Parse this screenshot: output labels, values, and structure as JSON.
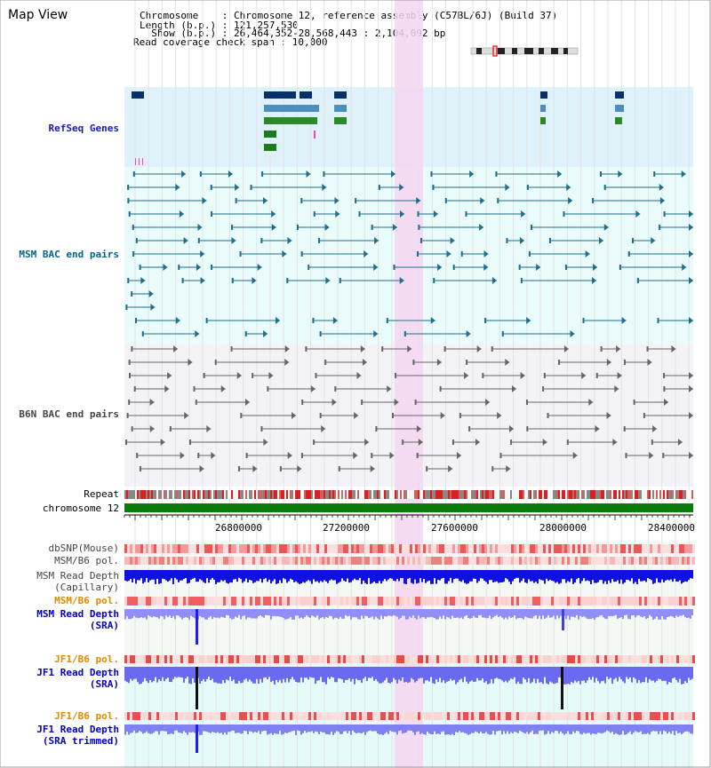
{
  "page": {
    "title": "Map View"
  },
  "header": {
    "chromosome": "Chromosome    : Chromosome 12, reference assembly (C57BL/6J) (Build 37)",
    "length": "Length (b.p.) : 121,257,530",
    "show": "  Show (b.p.) : 26,464,352-28,568,443 : 2,104,092 bp",
    "coverage": "Read coverage check span : 10,000"
  },
  "tracks": {
    "refseq": "RefSeq Genes",
    "msm_bac": "MSM BAC end pairs",
    "b6n_bac": "B6N BAC end pairs",
    "repeat": "Repeat",
    "chromosome": "chromosome 12",
    "dbsnp": "dbSNP(Mouse)",
    "msm_b6_pol_1": "MSM/B6 pol.",
    "msm_depth_cap_1": "MSM Read Depth",
    "msm_depth_cap_2": "(Capillary)",
    "msm_b6_pol_2": "MSM/B6 pol.",
    "msm_depth_sra_1": "MSM Read Depth",
    "msm_depth_sra_2": "(SRA)",
    "jf1_pol_1": "JF1/B6 pol.",
    "jf1_depth_sra_1": "JF1 Read Depth",
    "jf1_depth_sra_2": "(SRA)",
    "jf1_pol_2": "JF1/B6 pol.",
    "jf1_depth_trim_1": "JF1 Read Depth",
    "jf1_depth_trim_2": "(SRA trimmed)"
  },
  "axis": {
    "ticks": [
      "26800000",
      "27200000",
      "27600000",
      "28000000",
      "28400000"
    ]
  },
  "colors": {
    "refseq_label": "#1a1aa6",
    "msm_bac_label": "#006688",
    "highlight": "#f5d6f0",
    "orange_label": "#e08a00",
    "blue_label": "#0000cc"
  }
}
